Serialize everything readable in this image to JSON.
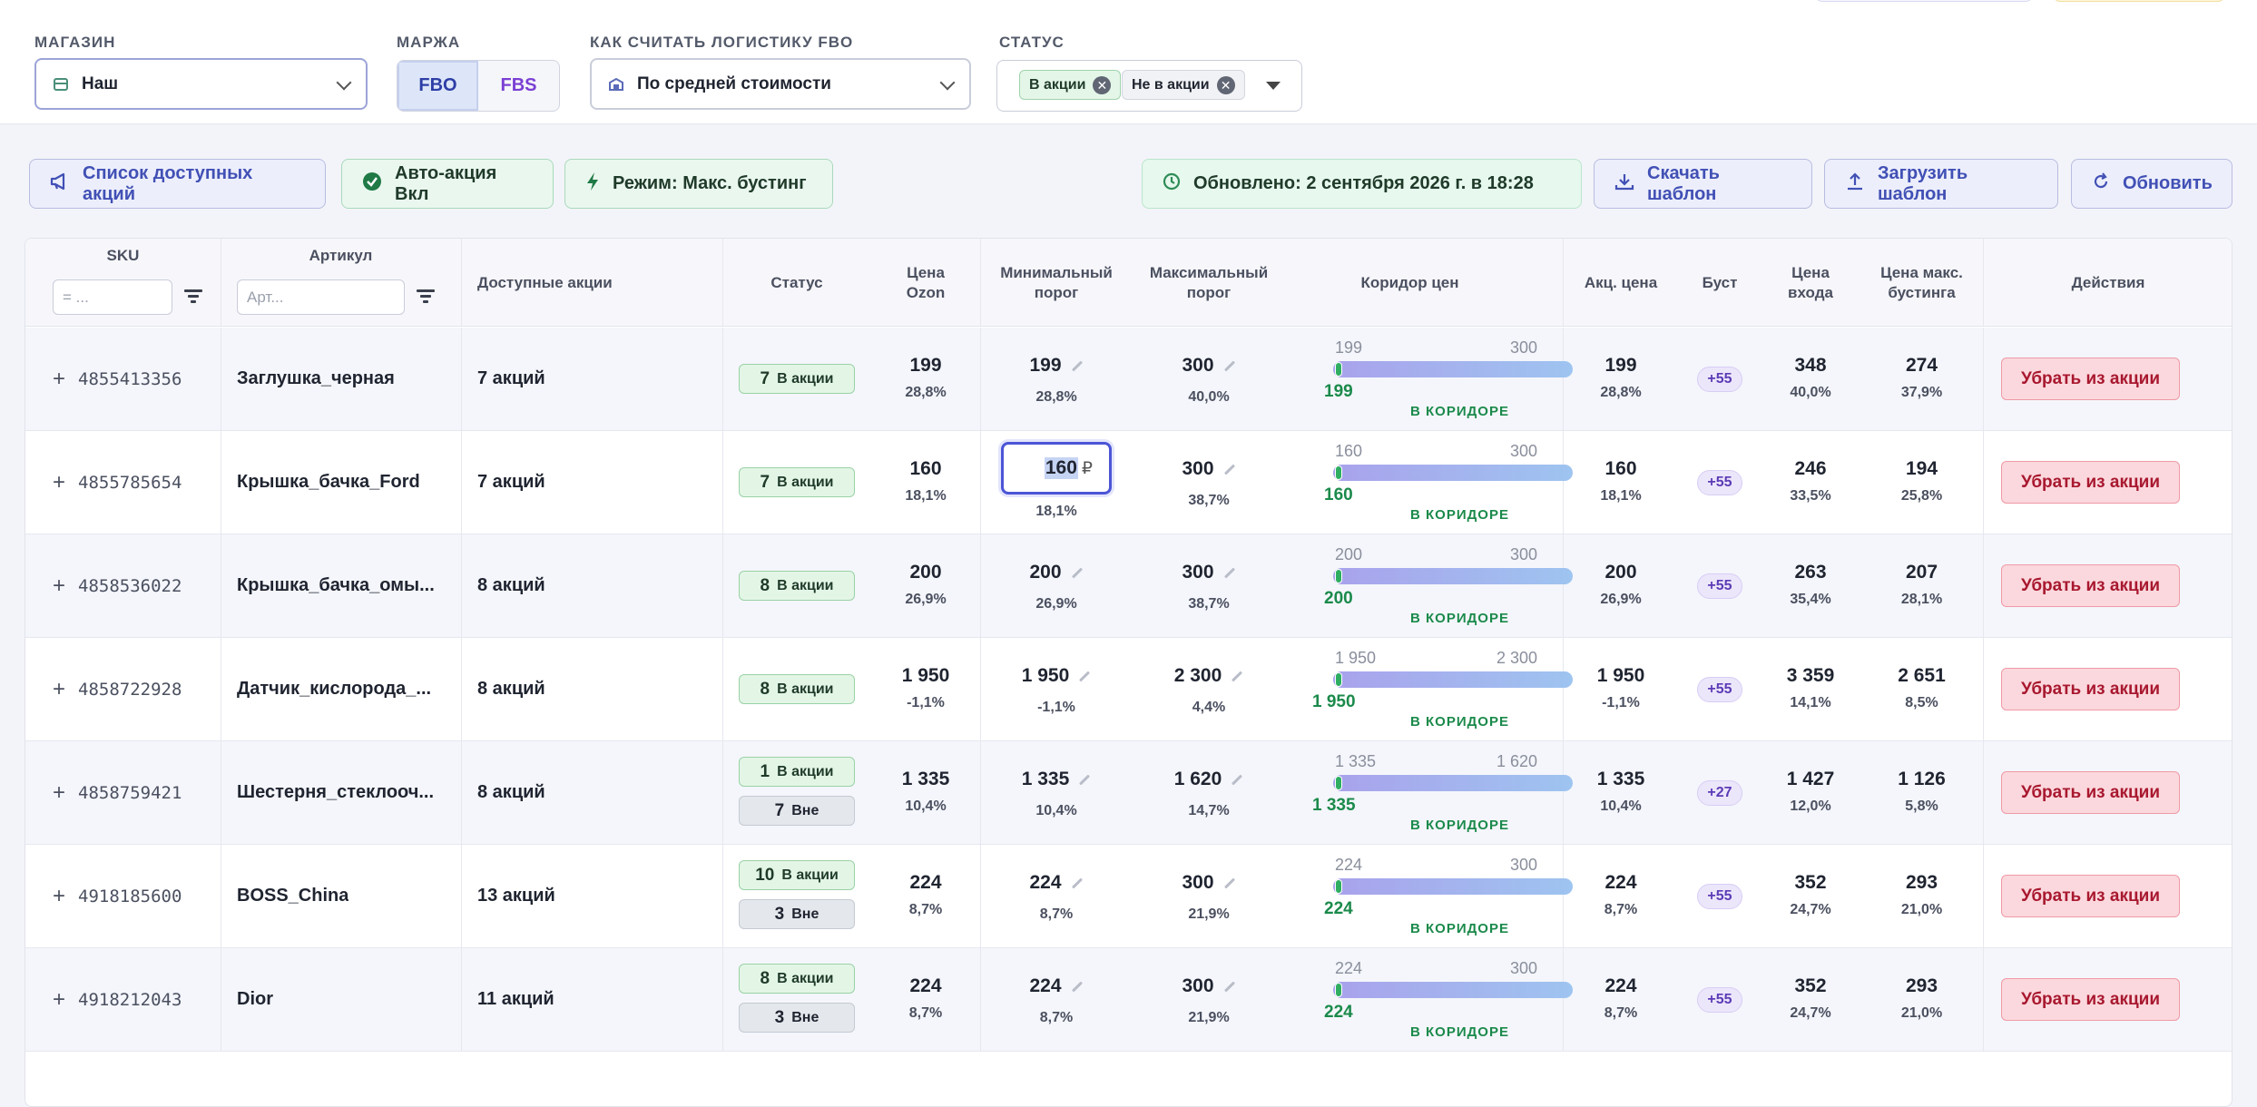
{
  "filters": {
    "shop": {
      "label": "МАГАЗИН",
      "value": "Наш"
    },
    "margin": {
      "label": "МАРЖА",
      "options": [
        "FBO",
        "FBS"
      ],
      "selected": "FBO"
    },
    "logistics": {
      "label": "КАК СЧИТАТЬ ЛОГИСТИКУ FBO",
      "value": "По средней стоимости"
    },
    "status": {
      "label": "СТАТУС",
      "chips": [
        "В акции",
        "Не в акции"
      ]
    }
  },
  "toolbar": {
    "promo_list": "Список доступных акций",
    "auto_promo": "Авто-акция Вкл",
    "mode": "Режим: Макс. бустинг",
    "updated": "Обновлено:  2 сентября 2026 г. в 18:28",
    "download": "Скачать шаблон",
    "upload": "Загрузить шаблон",
    "refresh": "Обновить"
  },
  "table": {
    "headers": {
      "sku": "SKU",
      "article": "Артикул",
      "promos": "Доступные акции",
      "status": "Статус",
      "ozon_price": "Цена Ozon",
      "min_threshold": "Минимальный порог",
      "max_threshold": "Максимальный порог",
      "corridor": "Коридор цен",
      "promo_price": "Акц. цена",
      "boost": "Буст",
      "entry_price": "Цена входа",
      "max_boost_price": "Цена макс. бустинга",
      "actions": "Действия"
    },
    "sku_filter_placeholder": "= ...",
    "article_filter_placeholder": "Арт...",
    "corridor_status": "В КОРИДОРЕ",
    "remove_label": "Убрать из акции",
    "rows": [
      {
        "sku": "4855413356",
        "article": "Заглушка_черная",
        "promos": "7 акций",
        "status": [
          {
            "n": "7",
            "t": "В акции",
            "kind": "in"
          }
        ],
        "ozon": "199",
        "ozon_pct": "28,8%",
        "min": "199",
        "min_pct": "28,8%",
        "max": "300",
        "max_pct": "40,0%",
        "c_min": "199",
        "c_max": "300",
        "c_cur": "199",
        "promo": "199",
        "promo_pct": "28,8%",
        "boost": "+55",
        "entry": "348",
        "entry_pct": "40,0%",
        "mb": "274",
        "mb_pct": "37,9%"
      },
      {
        "sku": "4855785654",
        "article": "Крышка_бачка_Ford",
        "promos": "7 акций",
        "status": [
          {
            "n": "7",
            "t": "В акции",
            "kind": "in"
          }
        ],
        "ozon": "160",
        "ozon_pct": "18,1%",
        "min": "160",
        "min_edit": true,
        "min_cur": "₽",
        "min_pct": "18,1%",
        "max": "300",
        "max_pct": "38,7%",
        "c_min": "160",
        "c_max": "300",
        "c_cur": "160",
        "promo": "160",
        "promo_pct": "18,1%",
        "boost": "+55",
        "entry": "246",
        "entry_pct": "33,5%",
        "mb": "194",
        "mb_pct": "25,8%"
      },
      {
        "sku": "4858536022",
        "article": "Крышка_бачка_омы...",
        "promos": "8 акций",
        "status": [
          {
            "n": "8",
            "t": "В акции",
            "kind": "in"
          }
        ],
        "ozon": "200",
        "ozon_pct": "26,9%",
        "min": "200",
        "min_pct": "26,9%",
        "max": "300",
        "max_pct": "38,7%",
        "c_min": "200",
        "c_max": "300",
        "c_cur": "200",
        "promo": "200",
        "promo_pct": "26,9%",
        "boost": "+55",
        "entry": "263",
        "entry_pct": "35,4%",
        "mb": "207",
        "mb_pct": "28,1%"
      },
      {
        "sku": "4858722928",
        "article": "Датчик_кислорода_...",
        "promos": "8 акций",
        "status": [
          {
            "n": "8",
            "t": "В акции",
            "kind": "in"
          }
        ],
        "ozon": "1 950",
        "ozon_pct": "-1,1%",
        "min": "1 950",
        "min_pct": "-1,1%",
        "max": "2 300",
        "max_pct": "4,4%",
        "c_min": "1 950",
        "c_max": "2 300",
        "c_cur": "1 950",
        "promo": "1 950",
        "promo_pct": "-1,1%",
        "boost": "+55",
        "entry": "3 359",
        "entry_pct": "14,1%",
        "mb": "2 651",
        "mb_pct": "8,5%"
      },
      {
        "sku": "4858759421",
        "article": "Шестерня_стеклооч...",
        "promos": "8 акций",
        "status": [
          {
            "n": "1",
            "t": "В акции",
            "kind": "in"
          },
          {
            "n": "7",
            "t": "Вне",
            "kind": "out"
          }
        ],
        "ozon": "1 335",
        "ozon_pct": "10,4%",
        "min": "1 335",
        "min_pct": "10,4%",
        "max": "1 620",
        "max_pct": "14,7%",
        "c_min": "1 335",
        "c_max": "1 620",
        "c_cur": "1 335",
        "promo": "1 335",
        "promo_pct": "10,4%",
        "boost": "+27",
        "entry": "1 427",
        "entry_pct": "12,0%",
        "mb": "1 126",
        "mb_pct": "5,8%"
      },
      {
        "sku": "4918185600",
        "article": "BOSS_China",
        "promos": "13 акций",
        "status": [
          {
            "n": "10",
            "t": "В акции",
            "kind": "in"
          },
          {
            "n": "3",
            "t": "Вне",
            "kind": "out"
          }
        ],
        "ozon": "224",
        "ozon_pct": "8,7%",
        "min": "224",
        "min_pct": "8,7%",
        "max": "300",
        "max_pct": "21,9%",
        "c_min": "224",
        "c_max": "300",
        "c_cur": "224",
        "promo": "224",
        "promo_pct": "8,7%",
        "boost": "+55",
        "entry": "352",
        "entry_pct": "24,7%",
        "mb": "293",
        "mb_pct": "21,0%"
      },
      {
        "sku": "4918212043",
        "article": "Dior",
        "promos": "11 акций",
        "status": [
          {
            "n": "8",
            "t": "В акции",
            "kind": "in"
          },
          {
            "n": "3",
            "t": "Вне",
            "kind": "out"
          }
        ],
        "ozon": "224",
        "ozon_pct": "8,7%",
        "min": "224",
        "min_pct": "8,7%",
        "max": "300",
        "max_pct": "21,9%",
        "c_min": "224",
        "c_max": "300",
        "c_cur": "224",
        "promo": "224",
        "promo_pct": "8,7%",
        "boost": "+55",
        "entry": "352",
        "entry_pct": "24,7%",
        "mb": "293",
        "mb_pct": "21,0%"
      }
    ]
  }
}
